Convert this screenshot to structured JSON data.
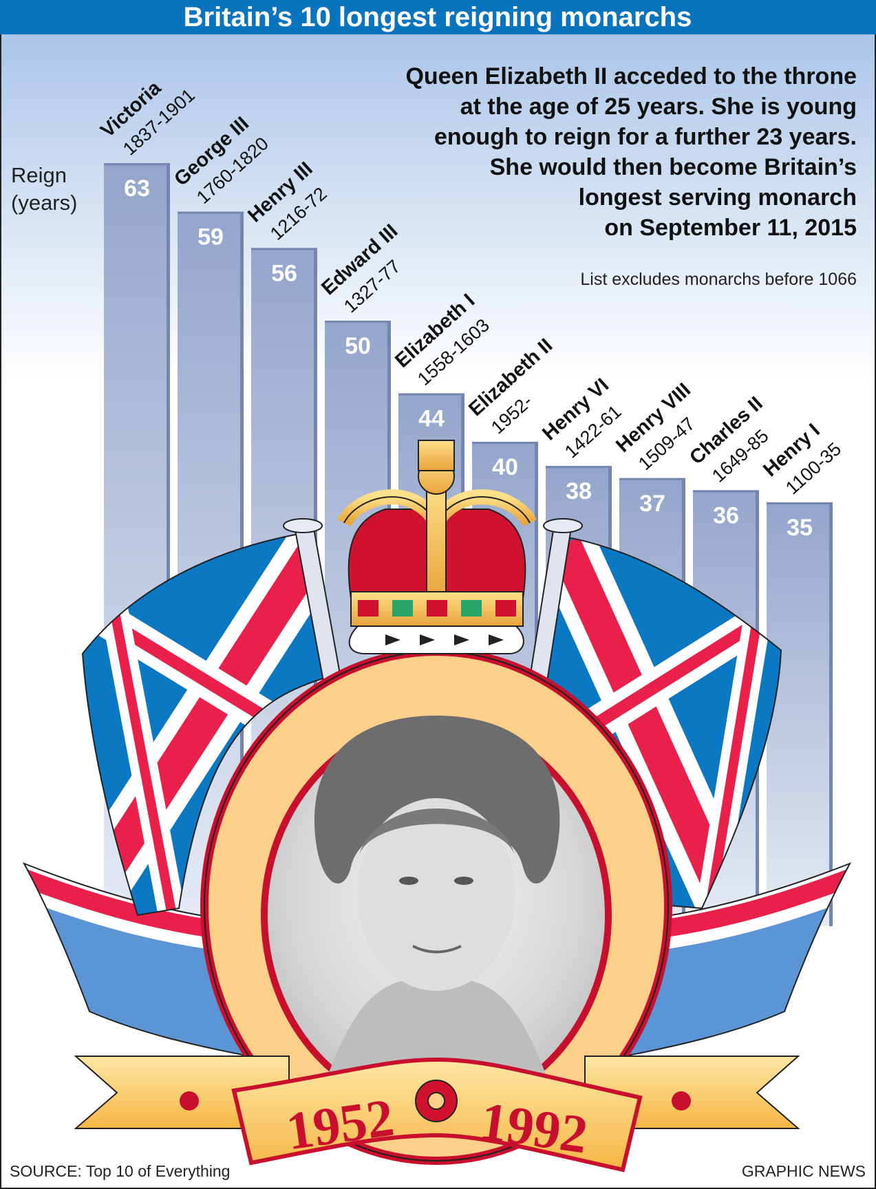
{
  "title": "Britain’s 10 longest reigning monarchs",
  "y_axis_label": [
    "Reign",
    "(years)"
  ],
  "note_lines": [
    "Queen Elizabeth II acceded to the throne",
    "at the age of 25 years. She is young",
    "enough to reign for a further 23 years.",
    "She would then become Britain’s",
    "longest serving monarch",
    "on September 11, 2015"
  ],
  "footnote": "List excludes monarchs before 1066",
  "source": "SOURCE: Top 10 of Everything",
  "credit": "GRAPHIC NEWS",
  "ribbon": {
    "left_year": "1952",
    "right_year": "1992"
  },
  "colors": {
    "title_bar": "#0a74bf",
    "bar": "#93a5cb",
    "flag_blue": "#0a78c2",
    "flag_red": "#e8204a",
    "frame": "#fdd089",
    "ribbon_red": "#c8102e"
  },
  "chart_data": {
    "type": "bar",
    "title": "Britain’s 10 longest reigning monarchs",
    "ylabel": "Reign (years)",
    "categories": [
      "Victoria",
      "George III",
      "Henry III",
      "Edward III",
      "Elizabeth I",
      "Elizabeth II",
      "Henry VI",
      "Henry VIII",
      "Charles II",
      "Henry I"
    ],
    "periods": [
      "1837-1901",
      "1760-1820",
      "1216-72",
      "1327-77",
      "1558-1603",
      "1952-",
      "1422-61",
      "1509-47",
      "1649-85",
      "1100-35"
    ],
    "values": [
      63,
      59,
      56,
      50,
      44,
      40,
      38,
      37,
      36,
      35
    ],
    "grid": false
  }
}
